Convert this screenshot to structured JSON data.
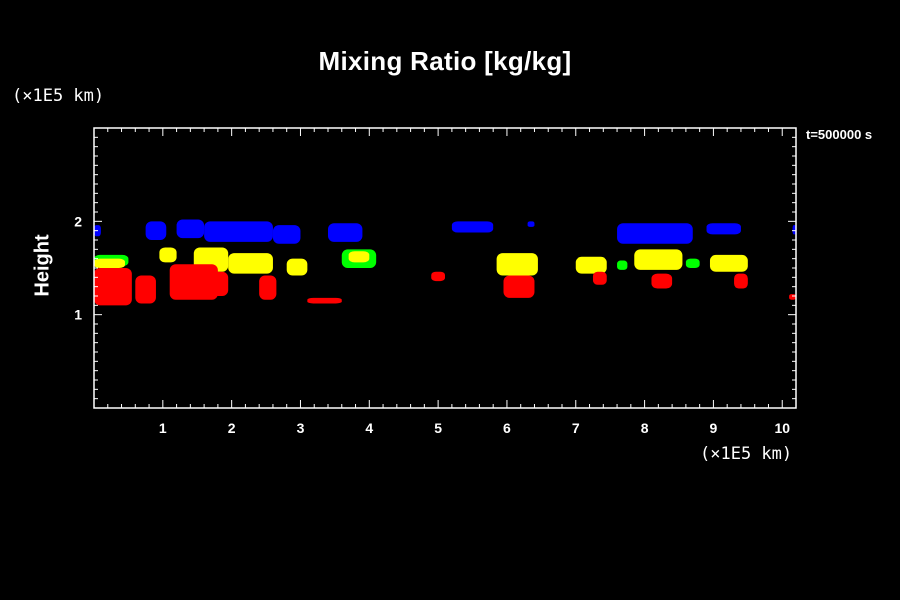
{
  "chart_data": {
    "type": "heatmap",
    "title": "Mixing Ratio [kg/kg]",
    "time_label": "t=500000 s",
    "ylabel": "Height",
    "y_unit_label": "(×1E5 km)",
    "x_unit_label": "(×1E5 km)",
    "xlim": [
      0,
      10.2
    ],
    "ylim": [
      0,
      3
    ],
    "x_ticks": [
      1,
      2,
      3,
      4,
      5,
      6,
      7,
      8,
      9,
      10
    ],
    "y_ticks": [
      1,
      2
    ],
    "background": "#000000",
    "axis_color": "#ffffff",
    "level_colors": [
      "#ff0000",
      "#ffff00",
      "#00ff00",
      "#0000ff"
    ],
    "regions": [
      {
        "color": "#0000ff",
        "x": [
          0.0,
          0.1
        ],
        "y": [
          1.84,
          1.96
        ]
      },
      {
        "color": "#0000ff",
        "x": [
          0.75,
          1.05
        ],
        "y": [
          1.8,
          2.0
        ]
      },
      {
        "color": "#0000ff",
        "x": [
          1.2,
          1.6
        ],
        "y": [
          1.82,
          2.02
        ]
      },
      {
        "color": "#0000ff",
        "x": [
          1.6,
          2.6
        ],
        "y": [
          1.78,
          2.0
        ]
      },
      {
        "color": "#0000ff",
        "x": [
          2.6,
          3.0
        ],
        "y": [
          1.76,
          1.96
        ]
      },
      {
        "color": "#0000ff",
        "x": [
          3.4,
          3.9
        ],
        "y": [
          1.78,
          1.98
        ]
      },
      {
        "color": "#0000ff",
        "x": [
          5.2,
          5.8
        ],
        "y": [
          1.88,
          2.0
        ]
      },
      {
        "color": "#0000ff",
        "x": [
          6.3,
          6.4
        ],
        "y": [
          1.94,
          2.0
        ]
      },
      {
        "color": "#0000ff",
        "x": [
          7.6,
          8.7
        ],
        "y": [
          1.76,
          1.98
        ]
      },
      {
        "color": "#0000ff",
        "x": [
          8.9,
          9.4
        ],
        "y": [
          1.86,
          1.98
        ]
      },
      {
        "color": "#0000ff",
        "x": [
          10.15,
          10.2
        ],
        "y": [
          1.86,
          1.96
        ]
      },
      {
        "color": "#00ff00",
        "x": [
          0.0,
          0.5
        ],
        "y": [
          1.52,
          1.64
        ]
      },
      {
        "color": "#00ff00",
        "x": [
          3.6,
          4.1
        ],
        "y": [
          1.5,
          1.7
        ]
      },
      {
        "color": "#00ff00",
        "x": [
          7.6,
          7.75
        ],
        "y": [
          1.48,
          1.58
        ]
      },
      {
        "color": "#00ff00",
        "x": [
          8.6,
          8.8
        ],
        "y": [
          1.5,
          1.6
        ]
      },
      {
        "color": "#ffff00",
        "x": [
          0.0,
          0.45
        ],
        "y": [
          1.5,
          1.6
        ]
      },
      {
        "color": "#ffff00",
        "x": [
          0.95,
          1.2
        ],
        "y": [
          1.56,
          1.72
        ]
      },
      {
        "color": "#ffff00",
        "x": [
          1.45,
          1.95
        ],
        "y": [
          1.46,
          1.72
        ]
      },
      {
        "color": "#ffff00",
        "x": [
          1.95,
          2.6
        ],
        "y": [
          1.44,
          1.66
        ]
      },
      {
        "color": "#ffff00",
        "x": [
          2.8,
          3.1
        ],
        "y": [
          1.42,
          1.6
        ]
      },
      {
        "color": "#ffff00",
        "x": [
          3.7,
          4.0
        ],
        "y": [
          1.56,
          1.68
        ]
      },
      {
        "color": "#ffff00",
        "x": [
          5.85,
          6.45
        ],
        "y": [
          1.42,
          1.66
        ]
      },
      {
        "color": "#ffff00",
        "x": [
          7.0,
          7.45
        ],
        "y": [
          1.44,
          1.62
        ]
      },
      {
        "color": "#ffff00",
        "x": [
          7.85,
          8.55
        ],
        "y": [
          1.48,
          1.7
        ]
      },
      {
        "color": "#ffff00",
        "x": [
          8.95,
          9.5
        ],
        "y": [
          1.46,
          1.64
        ]
      },
      {
        "color": "#ff0000",
        "x": [
          0.0,
          0.55
        ],
        "y": [
          1.1,
          1.5
        ]
      },
      {
        "color": "#ff0000",
        "x": [
          0.6,
          0.9
        ],
        "y": [
          1.12,
          1.42
        ]
      },
      {
        "color": "#ff0000",
        "x": [
          1.1,
          1.8
        ],
        "y": [
          1.16,
          1.54
        ]
      },
      {
        "color": "#ff0000",
        "x": [
          1.6,
          1.95
        ],
        "y": [
          1.2,
          1.46
        ]
      },
      {
        "color": "#ff0000",
        "x": [
          2.4,
          2.65
        ],
        "y": [
          1.16,
          1.42
        ]
      },
      {
        "color": "#ff0000",
        "x": [
          3.1,
          3.6
        ],
        "y": [
          1.12,
          1.18
        ]
      },
      {
        "color": "#ff0000",
        "x": [
          4.9,
          5.1
        ],
        "y": [
          1.36,
          1.46
        ]
      },
      {
        "color": "#ff0000",
        "x": [
          5.95,
          6.4
        ],
        "y": [
          1.18,
          1.42
        ]
      },
      {
        "color": "#ff0000",
        "x": [
          7.25,
          7.45
        ],
        "y": [
          1.32,
          1.46
        ]
      },
      {
        "color": "#ff0000",
        "x": [
          8.1,
          8.4
        ],
        "y": [
          1.28,
          1.44
        ]
      },
      {
        "color": "#ff0000",
        "x": [
          9.3,
          9.5
        ],
        "y": [
          1.28,
          1.44
        ]
      },
      {
        "color": "#ff0000",
        "x": [
          10.1,
          10.2
        ],
        "y": [
          1.16,
          1.22
        ]
      }
    ]
  }
}
